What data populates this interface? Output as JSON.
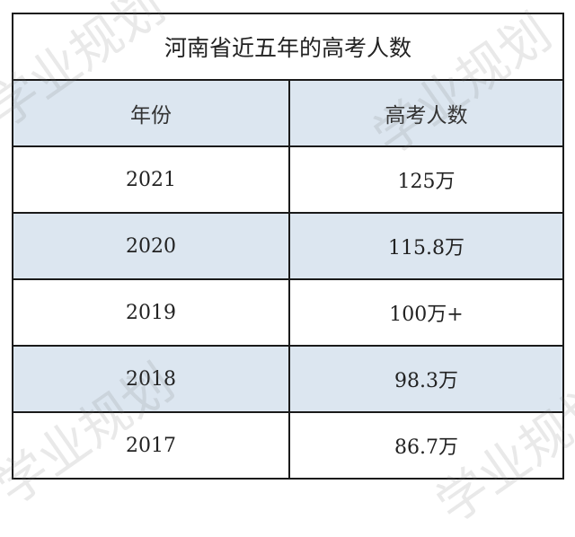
{
  "title": "河南省近五年的高考人数",
  "headers": [
    "年份",
    "高考人数"
  ],
  "rows": [
    {
      "year": "2021",
      "count": "125万"
    },
    {
      "year": "2020",
      "count": "115.8万"
    },
    {
      "year": "2019",
      "count": "100万+"
    },
    {
      "year": "2018",
      "count": "98.3万"
    },
    {
      "year": "2017",
      "count": "86.7万"
    }
  ],
  "colors": {
    "header_fill": "#dce6f0",
    "border": "#1a1a1a"
  },
  "watermark": "学业规划"
}
